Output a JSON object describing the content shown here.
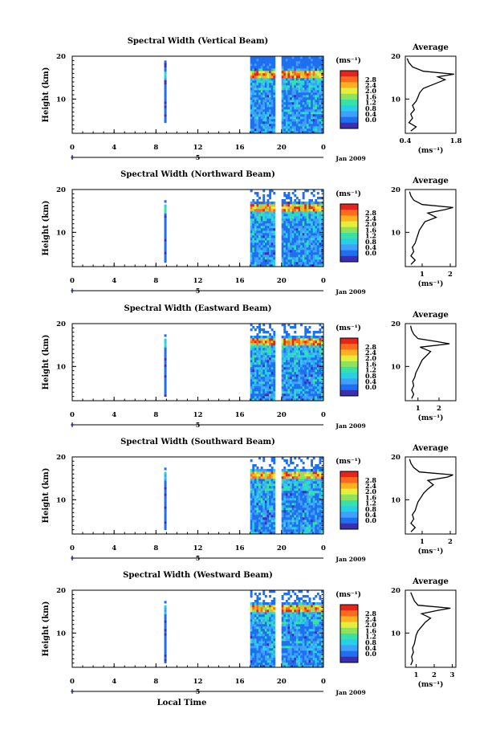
{
  "xlabel": "Local Time",
  "date_label": "Jan 2009",
  "height_label": "Height (km)",
  "unit_label": "(ms⁻¹)",
  "avg_unit_label": "(ms⁻¹)",
  "avg_title": "Average",
  "x_ticks": [
    "0",
    "4",
    "8",
    "12",
    "16",
    "20",
    "0"
  ],
  "y_ticks": [
    "20",
    "10"
  ],
  "day_marker": "5",
  "colorbar_ticks": [
    "2.8",
    "2.4",
    "2.0",
    "1.6",
    "1.2",
    "0.8",
    "0.4",
    "0.0"
  ],
  "colors": [
    "#3a2fb0",
    "#1f6ff0",
    "#3fa0ff",
    "#28d0e6",
    "#39e0a8",
    "#8ee25c",
    "#e6ee3c",
    "#ffb020",
    "#ff6a1f",
    "#e5241c"
  ],
  "chart_data": [
    {
      "type": "heatmap",
      "title": "Spectral Width (Vertical Beam)",
      "avg_x_ticks": [
        "0.4",
        "1.8"
      ],
      "avg_xlim": [
        0.4,
        1.8
      ],
      "ylim": [
        2,
        20
      ],
      "avg_profile": [
        [
          0.55,
          2.5
        ],
        [
          0.7,
          3.5
        ],
        [
          0.5,
          4.5
        ],
        [
          0.6,
          5.5
        ],
        [
          0.55,
          6.5
        ],
        [
          0.65,
          7.5
        ],
        [
          0.6,
          8.5
        ],
        [
          0.7,
          9.5
        ],
        [
          0.75,
          10.5
        ],
        [
          0.8,
          11.5
        ],
        [
          0.9,
          12.5
        ],
        [
          1.2,
          13.5
        ],
        [
          1.5,
          14.5
        ],
        [
          1.3,
          15.2
        ],
        [
          1.75,
          15.8
        ],
        [
          0.9,
          16.5
        ],
        [
          0.6,
          17.5
        ],
        [
          0.5,
          18.5
        ],
        [
          0.45,
          19.5
        ]
      ]
    },
    {
      "type": "heatmap",
      "title": "Spectral Width (Northward Beam)",
      "avg_x_ticks": [
        "1",
        "2"
      ],
      "avg_xlim": [
        0.4,
        2.2
      ],
      "ylim": [
        2,
        20
      ],
      "avg_profile": [
        [
          0.6,
          2.5
        ],
        [
          0.75,
          3.5
        ],
        [
          0.6,
          4.5
        ],
        [
          0.7,
          5.5
        ],
        [
          0.65,
          6.5
        ],
        [
          0.75,
          7.5
        ],
        [
          0.8,
          8.5
        ],
        [
          0.85,
          9.5
        ],
        [
          0.9,
          10.5
        ],
        [
          1.0,
          11.5
        ],
        [
          1.1,
          12.5
        ],
        [
          1.5,
          13.5
        ],
        [
          1.2,
          14.5
        ],
        [
          1.8,
          15.3
        ],
        [
          2.1,
          15.8
        ],
        [
          1.0,
          16.5
        ],
        [
          0.7,
          17.5
        ],
        [
          0.6,
          18.5
        ],
        [
          0.55,
          19.5
        ]
      ]
    },
    {
      "type": "heatmap",
      "title": "Spectral Width (Eastward Beam)",
      "avg_x_ticks": [
        "1",
        "2"
      ],
      "avg_xlim": [
        0.4,
        2.8
      ],
      "ylim": [
        2,
        20
      ],
      "avg_profile": [
        [
          0.7,
          2.5
        ],
        [
          0.8,
          3.5
        ],
        [
          0.7,
          4.5
        ],
        [
          0.8,
          5.5
        ],
        [
          0.75,
          6.5
        ],
        [
          0.85,
          7.5
        ],
        [
          0.9,
          8.5
        ],
        [
          1.0,
          9.5
        ],
        [
          1.1,
          10.5
        ],
        [
          1.2,
          11.5
        ],
        [
          1.4,
          12.5
        ],
        [
          1.6,
          13.5
        ],
        [
          1.1,
          14.5
        ],
        [
          2.5,
          15.3
        ],
        [
          1.9,
          15.8
        ],
        [
          1.0,
          16.5
        ],
        [
          0.8,
          17.5
        ],
        [
          0.7,
          18.5
        ],
        [
          0.65,
          19.5
        ]
      ]
    },
    {
      "type": "heatmap",
      "title": "Spectral Width (Southward Beam)",
      "avg_x_ticks": [
        "1",
        "2"
      ],
      "avg_xlim": [
        0.4,
        2.2
      ],
      "ylim": [
        2,
        20
      ],
      "avg_profile": [
        [
          0.6,
          2.5
        ],
        [
          0.75,
          3.5
        ],
        [
          0.6,
          4.5
        ],
        [
          0.7,
          5.5
        ],
        [
          0.65,
          6.5
        ],
        [
          0.75,
          7.5
        ],
        [
          0.8,
          8.5
        ],
        [
          0.85,
          9.5
        ],
        [
          0.95,
          10.5
        ],
        [
          1.05,
          11.5
        ],
        [
          1.2,
          12.5
        ],
        [
          1.4,
          13.5
        ],
        [
          1.2,
          14.5
        ],
        [
          1.9,
          15.3
        ],
        [
          2.1,
          15.8
        ],
        [
          0.9,
          16.5
        ],
        [
          0.7,
          17.5
        ],
        [
          0.6,
          18.5
        ],
        [
          0.55,
          19.5
        ]
      ]
    },
    {
      "type": "heatmap",
      "title": "Spectral Width (Westward Beam)",
      "avg_x_ticks": [
        "1",
        "2",
        "3"
      ],
      "avg_xlim": [
        0.4,
        3.2
      ],
      "ylim": [
        2,
        20
      ],
      "avg_profile": [
        [
          0.7,
          2.5
        ],
        [
          0.8,
          3.5
        ],
        [
          0.75,
          4.5
        ],
        [
          0.85,
          5.5
        ],
        [
          0.8,
          6.5
        ],
        [
          0.9,
          7.5
        ],
        [
          0.95,
          8.5
        ],
        [
          1.0,
          9.5
        ],
        [
          1.1,
          10.5
        ],
        [
          1.3,
          11.5
        ],
        [
          1.5,
          12.5
        ],
        [
          1.8,
          13.5
        ],
        [
          1.3,
          14.5
        ],
        [
          2.2,
          15.3
        ],
        [
          2.9,
          15.8
        ],
        [
          1.1,
          16.5
        ],
        [
          0.9,
          17.5
        ],
        [
          0.8,
          18.5
        ],
        [
          0.7,
          19.5
        ]
      ]
    }
  ]
}
